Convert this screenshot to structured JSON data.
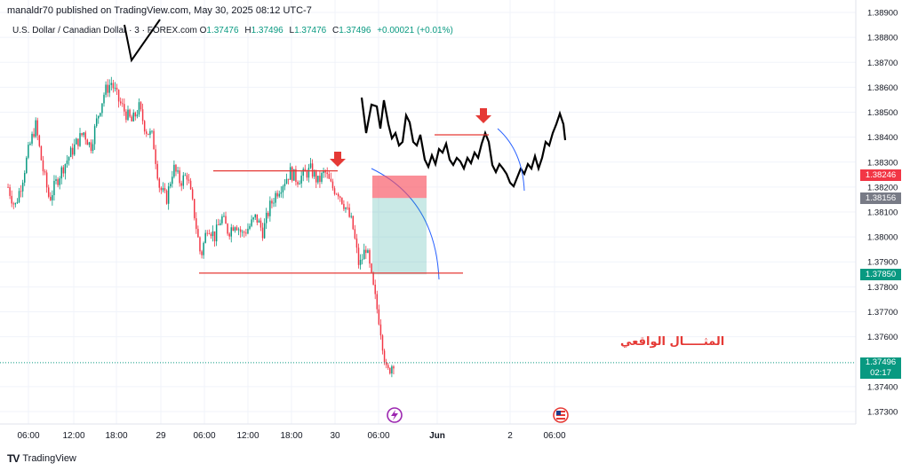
{
  "header": {
    "publisher_line": "manaldr70 published on TradingView.com, May 30, 2025 08:12 UTC-7",
    "symbol": "U.S. Dollar / Canadian Dollar · 3 · FOREX.com",
    "open_label": "O",
    "open": "1.37476",
    "high_label": "H",
    "high": "1.37496",
    "low_label": "L",
    "low": "1.37476",
    "close_label": "C",
    "close": "1.37496",
    "change": "+0.00021 (+0.01%)"
  },
  "annotation_text": "المثـــــال الواقعي",
  "footer": {
    "brand": "TradingView",
    "logo": "TV"
  },
  "colors": {
    "up": "#089981",
    "down": "#f23645",
    "box_red": "#f7525f",
    "box_green": "#26a69a",
    "line_red": "#e53935",
    "arc_blue": "#2962ff"
  },
  "tags": {
    "red": {
      "value": "1.38246",
      "color": "#f23645"
    },
    "gray": {
      "value": "1.38156",
      "color": "#787b86"
    },
    "green": {
      "value": "1.37850",
      "color": "#089981"
    },
    "current": {
      "value": "1.37496",
      "timer": "02:17",
      "color": "#089981"
    }
  },
  "event_icons": [
    "lightning-icon",
    "us-flag-icon"
  ],
  "chart_data": {
    "type": "candlestick",
    "symbol": "USDCAD",
    "y_ticks": [
      "1.38900",
      "1.38800",
      "1.38700",
      "1.38600",
      "1.38500",
      "1.38400",
      "1.38300",
      "1.38200",
      "1.38100",
      "1.38000",
      "1.37900",
      "1.37800",
      "1.37700",
      "1.37600",
      "1.37400",
      "1.37300"
    ],
    "ylim": [
      1.3725,
      1.3895
    ],
    "x_ticks": [
      "06:00",
      "12:00",
      "18:00",
      "29",
      "06:00",
      "12:00",
      "18:00",
      "30",
      "06:00",
      "Jun",
      "2",
      "06:00"
    ],
    "x_tick_bold": [
      false,
      false,
      false,
      false,
      false,
      false,
      false,
      false,
      false,
      true,
      false,
      false
    ],
    "price_path": [
      1.382,
      1.3812,
      1.3822,
      1.3835,
      1.3845,
      1.3828,
      1.3815,
      1.3822,
      1.3828,
      1.3833,
      1.3838,
      1.3842,
      1.3836,
      1.3848,
      1.3858,
      1.3862,
      1.3855,
      1.385,
      1.3846,
      1.3852,
      1.3843,
      1.384,
      1.382,
      1.3815,
      1.3828,
      1.3822,
      1.3825,
      1.381,
      1.3792,
      1.3805,
      1.38,
      1.3808,
      1.3802,
      1.3806,
      1.3801,
      1.3804,
      1.3808,
      1.3802,
      1.3812,
      1.3818,
      1.3822,
      1.3826,
      1.3823,
      1.3825,
      1.3827,
      1.3822,
      1.3826,
      1.382,
      1.3818,
      1.3812,
      1.3805,
      1.3788,
      1.3796,
      1.378,
      1.3765,
      1.3745,
      1.375
    ],
    "levels": {
      "range_top": 1.38265,
      "range_bottom": 1.37855,
      "box_red_top": 1.38246,
      "box_red_bottom": 1.38156,
      "box_green_top": 1.38156,
      "box_green_bottom": 1.3785
    }
  }
}
